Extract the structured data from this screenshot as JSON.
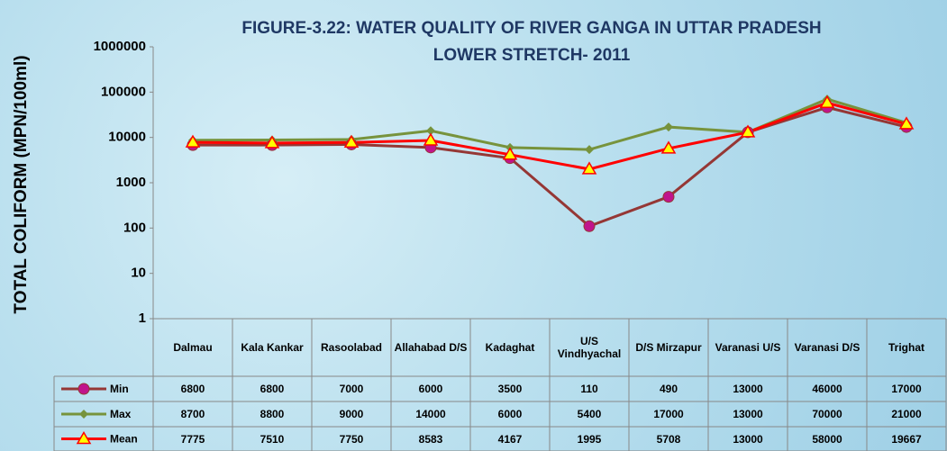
{
  "chart_data": {
    "type": "line",
    "title": "FIGURE-3.22: WATER QUALITY OF RIVER GANGA IN UTTAR PRADESH",
    "subtitle": "LOWER  STRETCH- 2011",
    "ylabel": "TOTAL COLIFORM (MPN/100ml)",
    "log_scale": true,
    "categories": [
      "Dalmau",
      "Kala Kankar",
      "Rasoolabad",
      "Allahabad D/S",
      "Kadaghat",
      "U/S Vindhyachal",
      "D/S Mirzapur",
      "Varanasi U/S",
      "Varanasi D/S",
      "Trighat"
    ],
    "series": [
      {
        "name": "Min",
        "color": "#953735",
        "marker_color": "#c0148c",
        "marker": "circle",
        "values": [
          6800,
          6800,
          7000,
          6000,
          3500,
          110,
          490,
          13000,
          46000,
          17000
        ]
      },
      {
        "name": "Max",
        "color": "#77933c",
        "marker_color": "#77933c",
        "marker": "diamond",
        "values": [
          8700,
          8800,
          9000,
          14000,
          6000,
          5400,
          17000,
          13000,
          70000,
          21000
        ]
      },
      {
        "name": "Mean",
        "color": "#ff0000",
        "marker_color": "#ffff00",
        "marker": "triangle",
        "values": [
          7775,
          7510,
          7750,
          8583,
          4167,
          1995,
          5708,
          13000,
          58000,
          19667
        ]
      }
    ],
    "ylim": [
      1,
      1000000
    ],
    "yticks": [
      1,
      10,
      100,
      1000,
      10000,
      100000,
      1000000
    ]
  }
}
